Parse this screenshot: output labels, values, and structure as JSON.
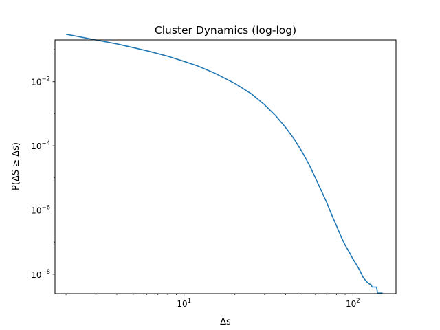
{
  "chart_data": {
    "type": "line",
    "title": "Cluster Dynamics (log-log)",
    "xlabel": "Δs",
    "ylabel": "P(ΔS ≥ Δs)",
    "xscale": "log",
    "yscale": "log",
    "xlim": [
      1.72,
      180
    ],
    "ylim": [
      2.5e-09,
      0.2
    ],
    "grid": false,
    "legend": "none",
    "line_color": "#1f77b4",
    "x_ticks": [
      {
        "value": 10,
        "base": "10",
        "exp": "1"
      },
      {
        "value": 100,
        "base": "10",
        "exp": "2"
      }
    ],
    "y_ticks": [
      {
        "value": 0.01,
        "base": "10",
        "exp": "−2"
      },
      {
        "value": 0.0001,
        "base": "10",
        "exp": "−4"
      },
      {
        "value": 1e-06,
        "base": "10",
        "exp": "−6"
      },
      {
        "value": 1e-08,
        "base": "10",
        "exp": "−8"
      }
    ],
    "series": [
      {
        "x": [
          2,
          3,
          4,
          5,
          6,
          8,
          10,
          12,
          15,
          20,
          25,
          30,
          35,
          40,
          45,
          50,
          55,
          60,
          65,
          70,
          75,
          80,
          85,
          90,
          95,
          100,
          105,
          110,
          115,
          120,
          125,
          128,
          130,
          138,
          140,
          150
        ],
        "y": [
          0.3,
          0.2,
          0.15,
          0.115,
          0.092,
          0.062,
          0.043,
          0.031,
          0.019,
          0.0088,
          0.0042,
          0.0019,
          0.00085,
          0.00037,
          0.00016,
          6.5e-05,
          2.6e-05,
          1e-05,
          4e-06,
          1.7e-06,
          7e-07,
          3.2e-07,
          1.5e-07,
          8e-08,
          5e-08,
          3e-08,
          2e-08,
          1.3e-08,
          8e-09,
          6e-09,
          5e-09,
          4.8e-09,
          4e-09,
          4e-09,
          2.6e-09,
          2.6e-09
        ]
      }
    ]
  }
}
